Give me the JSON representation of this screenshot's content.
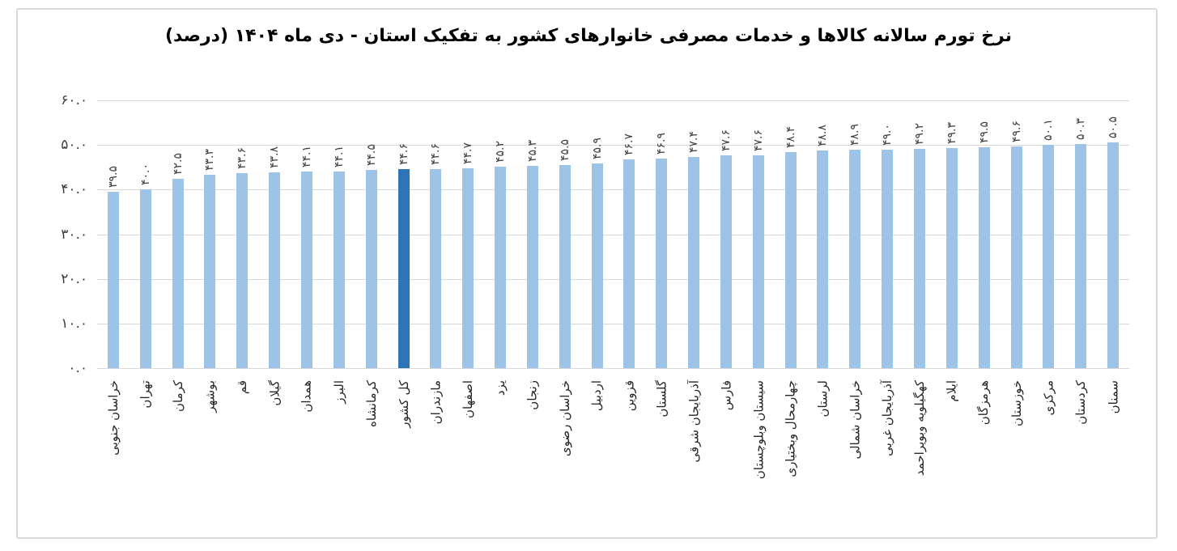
{
  "frame": {
    "border_color": "#d9d9d9",
    "background": "#ffffff"
  },
  "chart_data": {
    "type": "bar",
    "title": "نرخ تورم سالانه کالاها و خدمات مصرفی خانوارهای کشور به تفکیک استان - دی ماه ۱۴۰۴ (درصد)",
    "direction": "rtl",
    "xlabel": "",
    "ylabel": "",
    "ylim": [
      0,
      60
    ],
    "yticks": [
      0,
      10,
      20,
      30,
      40,
      50,
      60
    ],
    "ytick_labels": [
      "۰.۰",
      "۱۰.۰",
      "۲۰.۰",
      "۳۰.۰",
      "۴۰.۰",
      "۵۰.۰",
      "۶۰.۰"
    ],
    "grid": "horizontal",
    "legend": "none",
    "categories": [
      "خراسان جنوبی",
      "تهران",
      "کرمان",
      "بوشهر",
      "قم",
      "گیلان",
      "همدان",
      "البرز",
      "کرمانشاه",
      "کل کشور",
      "مازندران",
      "اصفهان",
      "یزد",
      "زنجان",
      "خراسان رضوی",
      "اردبیل",
      "قزوین",
      "گلستان",
      "آذربایجان شرقی",
      "فارس",
      "سیستان وبلوچستان",
      "چهارمحال وبختیاری",
      "لرستان",
      "خراسان شمالی",
      "آذربایجان غربی",
      "کهگیلویه وبویراحمد",
      "ایلام",
      "هرمزگان",
      "خوزستان",
      "مرکزی",
      "کردستان",
      "سمنان"
    ],
    "values": [
      39.5,
      40.0,
      42.5,
      43.3,
      43.6,
      43.8,
      44.1,
      44.1,
      44.5,
      44.6,
      44.6,
      44.7,
      45.2,
      45.3,
      45.5,
      45.9,
      46.7,
      46.9,
      47.4,
      47.6,
      47.6,
      48.4,
      48.8,
      48.9,
      49.0,
      49.2,
      49.3,
      49.5,
      49.6,
      50.1,
      50.3,
      50.5
    ],
    "value_labels": [
      "۳۹.۵",
      "۴۰.۰",
      "۴۲.۵",
      "۴۳.۳",
      "۴۳.۶",
      "۴۳.۸",
      "۴۴.۱",
      "۴۴.۱",
      "۴۴.۵",
      "۴۴.۶",
      "۴۴.۶",
      "۴۴.۷",
      "۴۵.۲",
      "۴۵.۳",
      "۴۵.۵",
      "۴۵.۹",
      "۴۶.۷",
      "۴۶.۹",
      "۴۷.۴",
      "۴۷.۶",
      "۴۷.۶",
      "۴۸.۴",
      "۴۸.۸",
      "۴۸.۹",
      "۴۹.۰",
      "۴۹.۲",
      "۴۹.۳",
      "۴۹.۵",
      "۴۹.۶",
      "۵۰.۱",
      "۵۰.۳",
      "۵۰.۵"
    ],
    "highlight_category": "کل کشور",
    "highlight_index": 9,
    "bar_color": "#9dc3e6",
    "highlight_color": "#2e75b6",
    "gridline_color": "#d9d9d9",
    "value_label_color": "#404040",
    "category_label_color": "#262626",
    "title_color": "#000000"
  }
}
